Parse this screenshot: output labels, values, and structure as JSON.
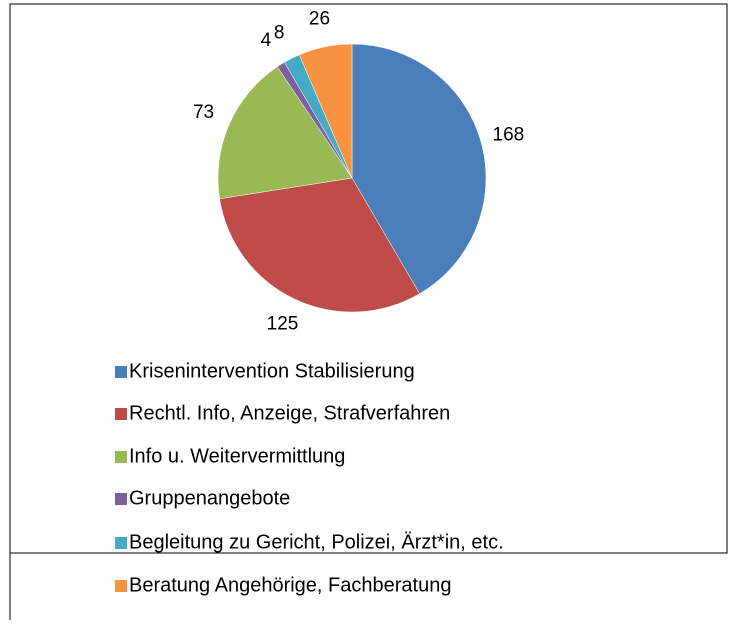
{
  "chart_data": {
    "type": "pie",
    "categories": [
      "Krisenintervention  Stabilisierung",
      "Rechtl. Info, Anzeige,  Strafverfahren",
      "Info u. Weitervermittlung",
      "Gruppenangebote",
      "Begleitung zu Gericht, Polizei, Ärzt*in, etc.",
      "Beratung Angehörige, Fachberatung"
    ],
    "values": [
      168,
      125,
      73,
      4,
      8,
      26
    ],
    "colors": [
      "#4a7ebb",
      "#be4b48",
      "#98b954",
      "#7d5fa0",
      "#46aac5",
      "#f69240"
    ],
    "legend": "bottom"
  }
}
